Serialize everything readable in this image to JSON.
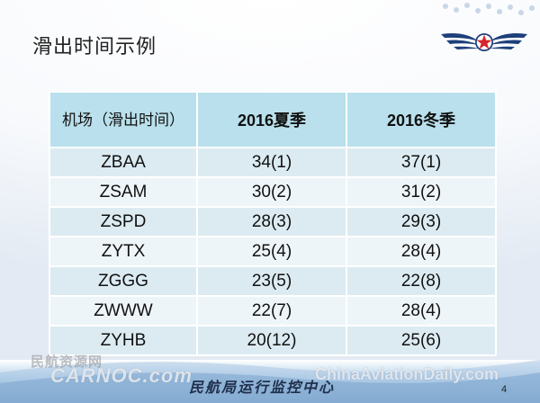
{
  "slide": {
    "title": "滑出时间示例",
    "page_number": "4",
    "footer": "民航局运行监控中心"
  },
  "table": {
    "headers": [
      "机场（滑出时间）",
      "2016夏季",
      "2016冬季"
    ],
    "rows": [
      [
        "ZBAA",
        "34(1)",
        "37(1)"
      ],
      [
        "ZSAM",
        "30(2)",
        "31(2)"
      ],
      [
        "ZSPD",
        "28(3)",
        "29(3)"
      ],
      [
        "ZYTX",
        "25(4)",
        "28(4)"
      ],
      [
        "ZGGG",
        "23(5)",
        "22(8)"
      ],
      [
        "ZWWW",
        "22(7)",
        "28(4)"
      ],
      [
        "ZYHB",
        "20(12)",
        "25(6)"
      ]
    ]
  },
  "watermarks": {
    "carnoc_cn": "民航资源网",
    "carnoc": "CARNOC.com",
    "china_aviation_daily": "ChinaAviationDaily.com"
  },
  "colors": {
    "header_bg": "#b9e0ec",
    "row_odd_bg": "#dcebf2",
    "row_even_bg": "#eef5f8",
    "logo_red": "#d7262b",
    "logo_blue": "#1d3f7a"
  },
  "icons": {
    "logo": "caac-wings-star-logo"
  }
}
